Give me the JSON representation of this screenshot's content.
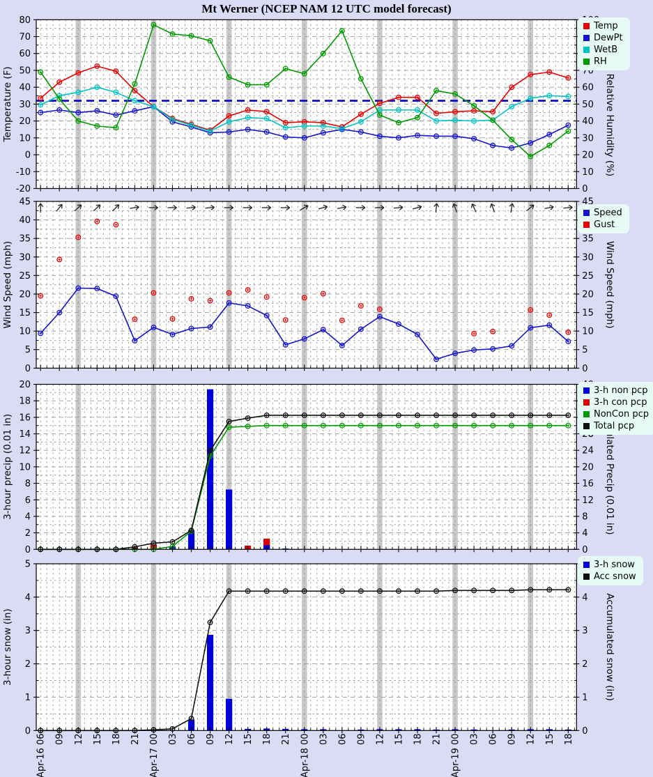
{
  "title": "Mt Werner (NCEP NAM 12 UTC model forecast)",
  "colors": {
    "page_bg": "#dbdbf5",
    "plot_bg": "#ffffff",
    "grid": "#999999",
    "shaded_band": "#c9c9c9",
    "legend_bg": "#e7fbf6",
    "axis": "#000000",
    "temp": "#e60000",
    "dewpt": "#1414cc",
    "wetb": "#00c3c3",
    "rh": "#009900",
    "freezing_line": "#0000cc",
    "speed": "#1414cc",
    "gust": "#e60000",
    "non_pcp_bar": "#0000dd",
    "con_pcp_bar": "#dd0000",
    "noncon_line": "#009900",
    "total_line": "#111111",
    "snow_bar": "#0000dd",
    "acc_snow_line": "#111111"
  },
  "chart_data": {
    "type": "line",
    "x_labels": [
      "Apr-16 06",
      "09",
      "12",
      "15",
      "18",
      "21",
      "Apr-17 00",
      "03",
      "06",
      "09",
      "12",
      "15",
      "18",
      "21",
      "Apr-18 00",
      "03",
      "06",
      "09",
      "12",
      "15",
      "18",
      "21",
      "Apr-19 00",
      "03",
      "06",
      "09",
      "12",
      "15",
      "18"
    ],
    "shaded_column_indices": [
      2,
      6,
      10,
      14,
      18,
      22,
      26
    ],
    "panels": [
      {
        "name": "temperature-humidity",
        "left_axis": {
          "label": "Temperature (F)",
          "min": -20,
          "max": 80,
          "step": 10,
          "minor": 5
        },
        "right_axis": {
          "label": "Relative Humidity (%)",
          "min": 0,
          "max": 100,
          "step": 10,
          "minor": 5
        },
        "legend": [
          {
            "label": "Temp",
            "color": "#e60000"
          },
          {
            "label": "DewPt",
            "color": "#1414cc"
          },
          {
            "label": "WetB",
            "color": "#00c3c3"
          },
          {
            "label": "RH",
            "color": "#009900"
          }
        ],
        "reference_line": {
          "axis": "left",
          "value": 32,
          "color": "#0000cc"
        },
        "series": [
          {
            "name": "Temp",
            "type": "line",
            "axis": "left",
            "color": "#e60000",
            "values": [
              33.5,
              43,
              48.5,
              52.5,
              49.5,
              38,
              28.5,
              21.5,
              18,
              14.5,
              23,
              26.5,
              25.5,
              19,
              19.5,
              19,
              16.5,
              24,
              30.5,
              34,
              34,
              24.5,
              25.5,
              26,
              25.5,
              40,
              47.5,
              49,
              45.5
            ]
          },
          {
            "name": "DewPt",
            "type": "line",
            "axis": "left",
            "color": "#1414cc",
            "values": [
              25,
              26.5,
              25,
              26,
              23.5,
              26,
              28.5,
              19.5,
              16.5,
              13,
              13.5,
              15,
              13.5,
              10.5,
              10,
              13,
              15,
              13.5,
              11,
              10,
              11.5,
              11,
              11,
              9.5,
              5.5,
              4,
              7,
              12,
              17.5
            ]
          },
          {
            "name": "WetB",
            "type": "line",
            "axis": "left",
            "color": "#00c3c3",
            "values": [
              29.5,
              35,
              37,
              40,
              37,
              32,
              28.5,
              21,
              17.5,
              14,
              19.5,
              22,
              21.5,
              16,
              17,
              17,
              15.5,
              19.5,
              26.5,
              26.5,
              26.5,
              20,
              20.5,
              20,
              20.5,
              28.5,
              33.5,
              35,
              34.5
            ]
          },
          {
            "name": "RH",
            "type": "line",
            "axis": "right",
            "color": "#009900",
            "values": [
              69,
              53,
              40,
              37,
              36,
              62,
              97,
              91.5,
              90.5,
              87.5,
              66,
              61.5,
              61.5,
              71,
              68,
              80,
              93.5,
              65,
              43.5,
              39,
              42,
              58,
              56,
              49,
              40.5,
              29,
              19,
              25.5,
              34
            ]
          }
        ]
      },
      {
        "name": "wind",
        "left_axis": {
          "label": "Wind Speed (mph)",
          "min": 0,
          "max": 45,
          "step": 5,
          "minor": 2.5
        },
        "right_axis": {
          "label": "Wind Speed (mph)",
          "min": 0,
          "max": 45,
          "step": 5,
          "minor": 2.5
        },
        "legend": [
          {
            "label": "Speed",
            "color": "#1414cc"
          },
          {
            "label": "Gust",
            "color": "#e60000"
          }
        ],
        "wind_arrows_deg": [
          90,
          50,
          42,
          42,
          45,
          8,
          0,
          0,
          5,
          5,
          0,
          0,
          0,
          0,
          30,
          15,
          10,
          0,
          0,
          5,
          15,
          85,
          110,
          115,
          110,
          80,
          40,
          10,
          5
        ],
        "series": [
          {
            "name": "Speed",
            "type": "line",
            "axis": "left",
            "color": "#1414cc",
            "values": [
              9.4,
              15,
              21.6,
              21.5,
              19.4,
              7.4,
              11,
              9.1,
              10.7,
              11.1,
              17.6,
              16.8,
              14.2,
              6.3,
              7.9,
              10.4,
              6.1,
              10.5,
              13.9,
              11.9,
              9.1,
              2.4,
              4,
              4.9,
              5.2,
              6,
              10.9,
              11.6,
              7.2
            ]
          },
          {
            "name": "Gust",
            "type": "scatter",
            "axis": "left",
            "color": "#e60000",
            "values": [
              19.5,
              29.3,
              35.3,
              39.6,
              38.7,
              13.2,
              20.3,
              13.3,
              18.7,
              18.2,
              20.3,
              21.1,
              19.2,
              13,
              19,
              20.1,
              12.9,
              16.8,
              15.9,
              null,
              null,
              null,
              null,
              9.3,
              9.9,
              null,
              15.7,
              14.3,
              9.7
            ]
          }
        ]
      },
      {
        "name": "precipitation",
        "left_axis": {
          "label": "3-hour precip (0.01 in)",
          "min": 0,
          "max": 20,
          "step": 2,
          "minor": 1
        },
        "right_axis": {
          "label": "Accumulated Precip (0.01 in)",
          "min": 0,
          "max": 40,
          "step": 4,
          "minor": 2
        },
        "legend": [
          {
            "label": "3-h non pcp",
            "color": "#0000dd"
          },
          {
            "label": "3-h con pcp",
            "color": "#dd0000"
          },
          {
            "label": "NonCon pcp",
            "color": "#009900"
          },
          {
            "label": "Total pcp",
            "color": "#111111"
          }
        ],
        "series": [
          {
            "name": "3-h con pcp",
            "type": "bar",
            "axis": "left",
            "color": "#dd0000",
            "values": [
              0,
              0,
              0,
              0,
              0,
              0.3,
              0.6,
              0,
              0,
              0,
              0,
              0.45,
              1.3,
              0,
              0,
              0,
              0,
              0,
              0,
              0,
              0,
              0,
              0,
              0,
              0,
              0,
              0,
              0,
              0
            ]
          },
          {
            "name": "3-h non pcp",
            "type": "bar",
            "axis": "left",
            "color": "#0000dd",
            "values": [
              0,
              0,
              0,
              0,
              0,
              0,
              0,
              0.35,
              2.3,
              19.4,
              7.25,
              0,
              0.5,
              0.1,
              0,
              0,
              0,
              0,
              0,
              0,
              0,
              0,
              0,
              0,
              0,
              0,
              0,
              0,
              0
            ]
          },
          {
            "name": "NonCon pcp",
            "type": "line",
            "axis": "right",
            "color": "#009900",
            "values": [
              0,
              0,
              0,
              0,
              0,
              0,
              0,
              0.7,
              4.4,
              22.6,
              29.6,
              29.8,
              30,
              30,
              30,
              30,
              30,
              30,
              30,
              30,
              30,
              30,
              30,
              30,
              30,
              30,
              30,
              30,
              30
            ]
          },
          {
            "name": "Total pcp",
            "type": "line",
            "axis": "right",
            "color": "#111111",
            "values": [
              0,
              0,
              0,
              0,
              0,
              0.6,
              1.5,
              1.8,
              4.6,
              23.9,
              31,
              31.8,
              32.5,
              32.5,
              32.5,
              32.5,
              32.5,
              32.5,
              32.5,
              32.5,
              32.5,
              32.5,
              32.5,
              32.5,
              32.5,
              32.5,
              32.5,
              32.5,
              32.5
            ]
          }
        ]
      },
      {
        "name": "snow",
        "left_axis": {
          "label": "3-hour snow (in)",
          "min": 0,
          "max": 5,
          "step": 1,
          "minor": 0.5
        },
        "right_axis": {
          "label": "Accumulated snow (in)",
          "min": 0,
          "max": 5,
          "step": 1,
          "minor": 0.5
        },
        "legend": [
          {
            "label": "3-h snow",
            "color": "#0000dd"
          },
          {
            "label": "Acc snow",
            "color": "#111111"
          }
        ],
        "series": [
          {
            "name": "3-h snow",
            "type": "bar",
            "axis": "left",
            "color": "#0000dd",
            "values": [
              0,
              0,
              0,
              0,
              0,
              0,
              0,
              0,
              0.33,
              2.87,
              0.95,
              0.05,
              0.06,
              0.05,
              0.04,
              0.04,
              0,
              0.03,
              0.04,
              0.04,
              0.04,
              0.03,
              0.04,
              0.03,
              0,
              0.03,
              0.04,
              0.04,
              0.03
            ]
          },
          {
            "name": "Acc snow",
            "type": "line",
            "axis": "right",
            "color": "#111111",
            "values": [
              0,
              0,
              0,
              0,
              0,
              0,
              0.02,
              0.05,
              0.36,
              3.24,
              4.18,
              4.18,
              4.18,
              4.18,
              4.18,
              4.18,
              4.18,
              4.18,
              4.18,
              4.18,
              4.18,
              4.18,
              4.2,
              4.2,
              4.2,
              4.2,
              4.22,
              4.22,
              4.22
            ]
          }
        ]
      }
    ]
  }
}
